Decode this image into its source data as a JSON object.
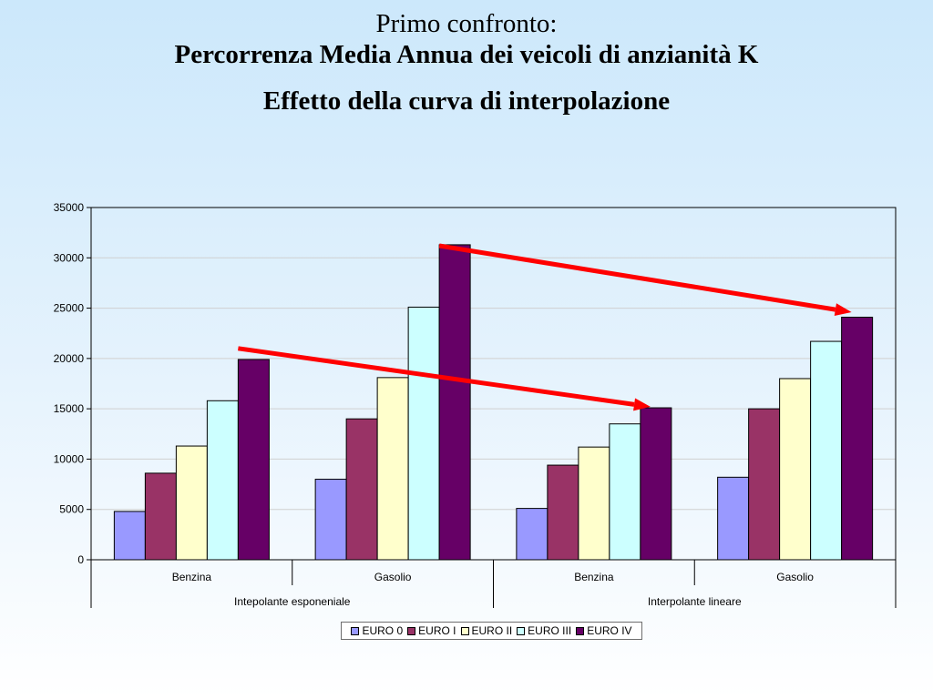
{
  "slide": {
    "title_line1": "Primo confronto:",
    "title_line2": "Percorrenza Media Annua dei veicoli di anzianità K",
    "subtitle": "Effetto della curva di interpolazione"
  },
  "chart_data": {
    "type": "bar",
    "categories": [
      "Benzina",
      "Gasolio",
      "Benzina",
      "Gasolio"
    ],
    "groups": [
      {
        "label": "Intepolante esponeniale",
        "categories": [
          "Benzina",
          "Gasolio"
        ]
      },
      {
        "label": "Interpolante lineare",
        "categories": [
          "Benzina",
          "Gasolio"
        ]
      }
    ],
    "series": [
      {
        "name": "EURO 0",
        "color": "#9999ff",
        "values": [
          4800,
          8000,
          5100,
          8200
        ]
      },
      {
        "name": "EURO I",
        "color": "#993366",
        "values": [
          8600,
          14000,
          9400,
          15000
        ]
      },
      {
        "name": "EURO II",
        "color": "#ffffcc",
        "values": [
          11300,
          18100,
          11200,
          18000
        ]
      },
      {
        "name": "EURO III",
        "color": "#ccffff",
        "values": [
          15800,
          25100,
          13500,
          21700
        ]
      },
      {
        "name": "EURO IV",
        "color": "#660066",
        "values": [
          19900,
          31300,
          15100,
          24100
        ]
      }
    ],
    "ylim": [
      0,
      35000
    ],
    "yticks": [
      0,
      5000,
      10000,
      15000,
      20000,
      25000,
      30000,
      35000
    ],
    "grid": true,
    "legend_position": "bottom",
    "annotations": [
      {
        "type": "arrow",
        "color": "#ff0000",
        "from": {
          "category": 0,
          "value": 21000
        },
        "to": {
          "category": 2,
          "value": 15200
        }
      },
      {
        "type": "arrow",
        "color": "#ff0000",
        "from": {
          "category": 1,
          "value": 31200
        },
        "to": {
          "category": 3,
          "value": 24600
        }
      }
    ]
  }
}
